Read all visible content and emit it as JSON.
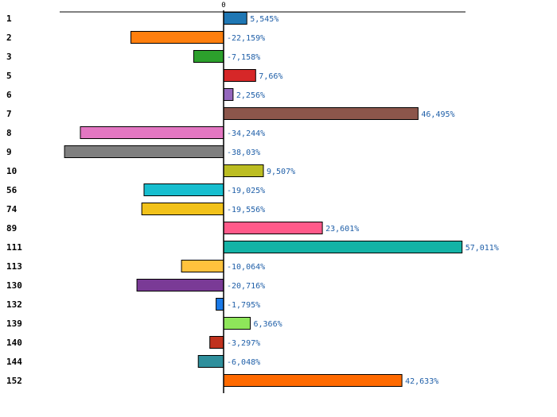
{
  "chart_data": {
    "type": "bar",
    "orientation": "horizontal",
    "title": "",
    "xlabel": "",
    "ylabel": "",
    "zero_tick_label": "0",
    "grid": false,
    "categories": [
      "1",
      "2",
      "3",
      "5",
      "6",
      "7",
      "8",
      "9",
      "10",
      "56",
      "74",
      "89",
      "111",
      "113",
      "130",
      "132",
      "139",
      "140",
      "144",
      "152"
    ],
    "values": [
      5.545,
      -22.159,
      -7.158,
      7.66,
      2.256,
      46.495,
      -34.244,
      -38.03,
      9.507,
      -19.025,
      -19.556,
      23.601,
      57.011,
      -10.064,
      -20.716,
      -1.795,
      6.366,
      -3.297,
      -6.048,
      42.633
    ],
    "value_labels": [
      "5,545%",
      "-22,159%",
      "-7,158%",
      "7,66%",
      "2,256%",
      "46,495%",
      "-34,244%",
      "-38,03%",
      "9,507%",
      "-19,025%",
      "-19,556%",
      "23,601%",
      "57,011%",
      "-10,064%",
      "-20,716%",
      "-1,795%",
      "6,366%",
      "-3,297%",
      "-6,048%",
      "42,633%"
    ],
    "colors": [
      "#1f77b4",
      "#ff7f0e",
      "#2ca02c",
      "#d62728",
      "#9467bd",
      "#8c564b",
      "#e377c2",
      "#7f7f7f",
      "#bcbd22",
      "#17becf",
      "#f2c21a",
      "#ff5a8a",
      "#14b3a6",
      "#ffc23d",
      "#7a3a96",
      "#1a7ae8",
      "#8ee65a",
      "#c0321e",
      "#2f8f9c",
      "#ff6a00"
    ],
    "xlim": [
      -39,
      57.5
    ]
  }
}
